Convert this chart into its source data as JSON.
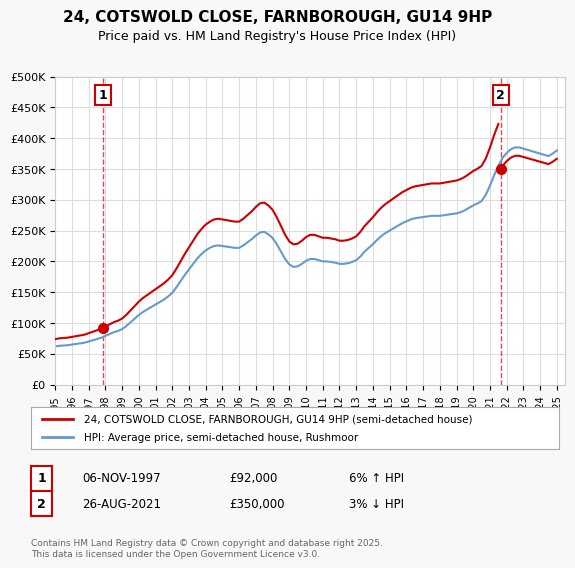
{
  "title": "24, COTSWOLD CLOSE, FARNBOROUGH, GU14 9HP",
  "subtitle": "Price paid vs. HM Land Registry's House Price Index (HPI)",
  "ylabel_ticks": [
    "£0",
    "£50K",
    "£100K",
    "£150K",
    "£200K",
    "£250K",
    "£300K",
    "£350K",
    "£400K",
    "£450K",
    "£500K"
  ],
  "ylim": [
    0,
    500000
  ],
  "xlim_start": 1995,
  "xlim_end": 2025.5,
  "marker1_x": 1997.85,
  "marker1_y": 92000,
  "marker1_label": "1",
  "marker2_x": 2021.65,
  "marker2_y": 350000,
  "marker2_label": "2",
  "vline1_x": 1997.85,
  "vline2_x": 2021.65,
  "sale_color": "#cc0000",
  "hpi_color": "#6699cc",
  "annotation1": [
    "1",
    "06-NOV-1997",
    "£92,000",
    "6% ↑ HPI"
  ],
  "annotation2": [
    "2",
    "26-AUG-2021",
    "£350,000",
    "3% ↓ HPI"
  ],
  "legend1": "24, COTSWOLD CLOSE, FARNBOROUGH, GU14 9HP (semi-detached house)",
  "legend2": "HPI: Average price, semi-detached house, Rushmoor",
  "footer": "Contains HM Land Registry data © Crown copyright and database right 2025.\nThis data is licensed under the Open Government Licence v3.0.",
  "hpi_data_x": [
    1995.0,
    1995.25,
    1995.5,
    1995.75,
    1996.0,
    1996.25,
    1996.5,
    1996.75,
    1997.0,
    1997.25,
    1997.5,
    1997.75,
    1998.0,
    1998.25,
    1998.5,
    1998.75,
    1999.0,
    1999.25,
    1999.5,
    1999.75,
    2000.0,
    2000.25,
    2000.5,
    2000.75,
    2001.0,
    2001.25,
    2001.5,
    2001.75,
    2002.0,
    2002.25,
    2002.5,
    2002.75,
    2003.0,
    2003.25,
    2003.5,
    2003.75,
    2004.0,
    2004.25,
    2004.5,
    2004.75,
    2005.0,
    2005.25,
    2005.5,
    2005.75,
    2006.0,
    2006.25,
    2006.5,
    2006.75,
    2007.0,
    2007.25,
    2007.5,
    2007.75,
    2008.0,
    2008.25,
    2008.5,
    2008.75,
    2009.0,
    2009.25,
    2009.5,
    2009.75,
    2010.0,
    2010.25,
    2010.5,
    2010.75,
    2011.0,
    2011.25,
    2011.5,
    2011.75,
    2012.0,
    2012.25,
    2012.5,
    2012.75,
    2013.0,
    2013.25,
    2013.5,
    2013.75,
    2014.0,
    2014.25,
    2014.5,
    2014.75,
    2015.0,
    2015.25,
    2015.5,
    2015.75,
    2016.0,
    2016.25,
    2016.5,
    2016.75,
    2017.0,
    2017.25,
    2017.5,
    2017.75,
    2018.0,
    2018.25,
    2018.5,
    2018.75,
    2019.0,
    2019.25,
    2019.5,
    2019.75,
    2020.0,
    2020.25,
    2020.5,
    2020.75,
    2021.0,
    2021.25,
    2021.5,
    2021.75,
    2022.0,
    2022.25,
    2022.5,
    2022.75,
    2023.0,
    2023.25,
    2023.5,
    2023.75,
    2024.0,
    2024.25,
    2024.5,
    2024.75,
    2025.0
  ],
  "hpi_data_y": [
    62000,
    63000,
    63500,
    64000,
    65000,
    66000,
    67000,
    68000,
    70000,
    72000,
    74000,
    76000,
    79000,
    82000,
    85000,
    87000,
    90000,
    95000,
    101000,
    107000,
    113000,
    118000,
    122000,
    126000,
    130000,
    134000,
    138000,
    143000,
    149000,
    158000,
    168000,
    178000,
    187000,
    196000,
    205000,
    212000,
    218000,
    222000,
    225000,
    226000,
    225000,
    224000,
    223000,
    222000,
    222000,
    226000,
    231000,
    236000,
    242000,
    247000,
    248000,
    244000,
    238000,
    228000,
    216000,
    204000,
    195000,
    191000,
    192000,
    196000,
    201000,
    204000,
    204000,
    202000,
    200000,
    200000,
    199000,
    198000,
    196000,
    196000,
    197000,
    199000,
    202000,
    208000,
    216000,
    222000,
    228000,
    235000,
    241000,
    246000,
    250000,
    254000,
    258000,
    262000,
    265000,
    268000,
    270000,
    271000,
    272000,
    273000,
    274000,
    274000,
    274000,
    275000,
    276000,
    277000,
    278000,
    280000,
    283000,
    287000,
    291000,
    294000,
    298000,
    308000,
    323000,
    340000,
    355000,
    368000,
    376000,
    382000,
    385000,
    385000,
    383000,
    381000,
    379000,
    377000,
    375000,
    373000,
    371000,
    375000,
    380000
  ],
  "sale_data_x": [
    1997.85,
    2021.65
  ],
  "sale_data_y": [
    92000,
    350000
  ],
  "xticks": [
    1995,
    1996,
    1997,
    1998,
    1999,
    2000,
    2001,
    2002,
    2003,
    2004,
    2005,
    2006,
    2007,
    2008,
    2009,
    2010,
    2011,
    2012,
    2013,
    2014,
    2015,
    2016,
    2017,
    2018,
    2019,
    2020,
    2021,
    2022,
    2023,
    2024,
    2025
  ],
  "background_color": "#f8f8f8",
  "plot_bg_color": "#ffffff",
  "grid_color": "#dddddd"
}
